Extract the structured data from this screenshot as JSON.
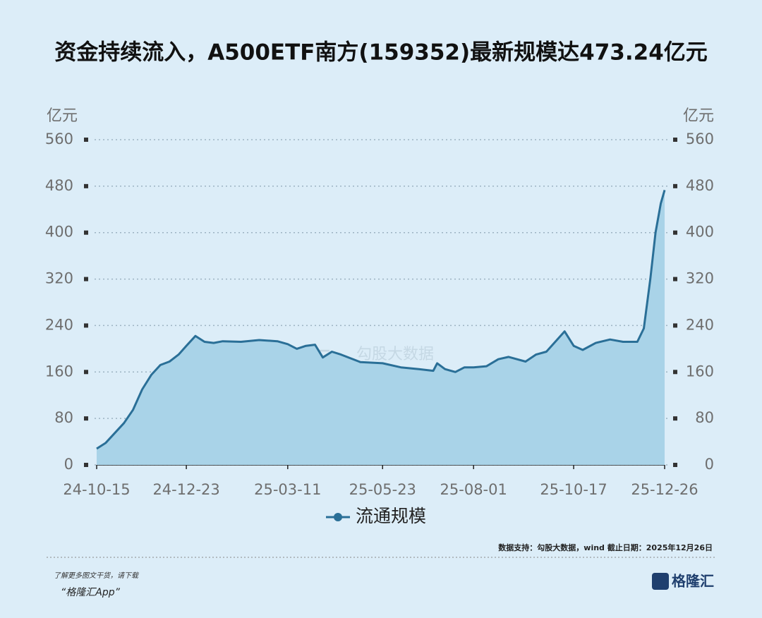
{
  "chart_data": {
    "type": "area",
    "title": "资金持续流入，A500ETF南方(159352)最新规模达473.24亿元",
    "y_label": "亿元",
    "y2_label": "亿元",
    "x": [
      "24-10-15",
      "24-10-22",
      "24-10-29",
      "24-11-05",
      "24-11-12",
      "24-11-19",
      "24-11-26",
      "24-12-03",
      "24-12-10",
      "24-12-17",
      "24-12-23",
      "24-12-30",
      "25-01-06",
      "25-01-13",
      "25-01-20",
      "25-02-03",
      "25-02-17",
      "25-03-03",
      "25-03-11",
      "25-03-18",
      "25-03-25",
      "25-04-01",
      "25-04-07",
      "25-04-14",
      "25-04-21",
      "25-05-06",
      "25-05-23",
      "25-06-06",
      "25-06-20",
      "25-07-01",
      "25-07-04",
      "25-07-10",
      "25-07-18",
      "25-07-25",
      "25-08-01",
      "25-08-11",
      "25-08-20",
      "25-08-28",
      "25-09-10",
      "25-09-18",
      "25-09-26",
      "25-10-10",
      "25-10-17",
      "25-10-24",
      "25-11-03",
      "25-11-14",
      "25-11-24",
      "25-12-05",
      "25-12-10",
      "25-12-15",
      "25-12-19",
      "25-12-23",
      "25-12-26"
    ],
    "series": [
      {
        "name": "流通规模",
        "color": "#2a6f97",
        "fill": "#a9d3e8",
        "values": [
          28,
          38,
          55,
          72,
          95,
          130,
          155,
          172,
          178,
          190,
          205,
          222,
          212,
          210,
          213,
          212,
          215,
          213,
          208,
          200,
          205,
          207,
          185,
          195,
          190,
          177,
          175,
          168,
          165,
          162,
          175,
          165,
          160,
          168,
          168,
          170,
          182,
          186,
          178,
          190,
          195,
          230,
          205,
          198,
          210,
          216,
          212,
          212,
          235,
          320,
          400,
          450,
          473.24
        ]
      }
    ],
    "xlim": [
      "24-10-15",
      "25-12-26"
    ],
    "xticks": [
      "24-10-15",
      "24-12-23",
      "25-03-11",
      "25-05-23",
      "25-08-01",
      "25-10-17",
      "25-12-26"
    ],
    "ylim": [
      0,
      560
    ],
    "yticks": [
      0,
      80,
      160,
      240,
      320,
      400,
      480,
      560
    ],
    "y2lim": [
      0,
      560
    ],
    "y2ticks": [
      0,
      80,
      160,
      240,
      320,
      400,
      480,
      560
    ],
    "grid": true,
    "legend": "bottom",
    "watermark": [
      "格隆汇",
      "勾股大数据"
    ],
    "source": "数据支持：勾股大数据，wind  截止日期：2025年12月26日",
    "footer": [
      "了解更多图文干货，请下载",
      "“格隆汇App”"
    ],
    "logo": "格隆汇"
  }
}
